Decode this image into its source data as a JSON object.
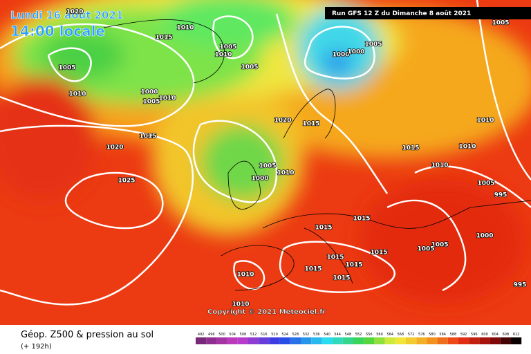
{
  "header": {
    "date": "Lundi 16 août 2021",
    "time": "14:00 locale",
    "run": "Run GFS 12 Z du Dimanche 8 août 2021"
  },
  "footer": {
    "copyright": "Copyright © 2021 Meteociel.fr",
    "product": "Géop. Z500 & pression au sol",
    "lead": "(+ 192h)"
  },
  "isobars": [
    1020,
    1010,
    1015,
    1005,
    1010,
    1005,
    1010,
    1005,
    1000,
    1005,
    1010,
    1000,
    1000,
    1005,
    1005,
    1020,
    1015,
    1015,
    1020,
    1015,
    1010,
    1010,
    1010,
    1005,
    1010,
    1000,
    1025,
    1005,
    995,
    1015,
    1015,
    1000,
    1005,
    1005,
    1015,
    1015,
    1015,
    1015,
    1015,
    1010,
    995,
    1010
  ],
  "scale": [
    492,
    496,
    500,
    504,
    508,
    512,
    516,
    520,
    524,
    528,
    532,
    536,
    540,
    544,
    548,
    552,
    556,
    560,
    564,
    568,
    572,
    576,
    580,
    584,
    588,
    592,
    596,
    600,
    604,
    608,
    612
  ]
}
